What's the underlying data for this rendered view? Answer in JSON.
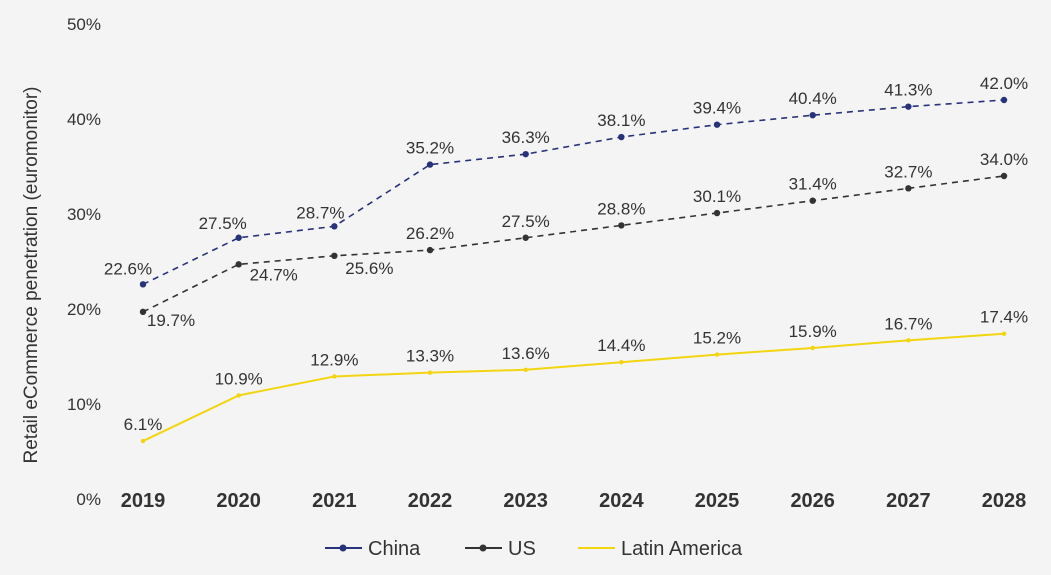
{
  "chart_data": {
    "type": "line",
    "title": "",
    "xlabel": "",
    "ylabel": "Retail eCommerce penetration (euromonitor)",
    "x": [
      "2019",
      "2020",
      "2021",
      "2022",
      "2023",
      "2024",
      "2025",
      "2026",
      "2027",
      "2028"
    ],
    "y_ticks": [
      "0%",
      "10%",
      "20%",
      "30%",
      "40%",
      "50%"
    ],
    "ylim": [
      0,
      50
    ],
    "grid": false,
    "legend_position": "bottom",
    "series": [
      {
        "name": "China",
        "color": "#27327a",
        "style": "dashed",
        "markers": true,
        "values": [
          22.6,
          27.5,
          28.7,
          35.2,
          36.3,
          38.1,
          39.4,
          40.4,
          41.3,
          42.0
        ],
        "labels": [
          "22.6%",
          "27.5%",
          "28.7%",
          "35.2%",
          "36.3%",
          "38.1%",
          "39.4%",
          "40.4%",
          "41.3%",
          "42.0%"
        ]
      },
      {
        "name": "US",
        "color": "#333333",
        "style": "dashed",
        "markers": true,
        "values": [
          19.7,
          24.7,
          25.6,
          26.2,
          27.5,
          28.8,
          30.1,
          31.4,
          32.7,
          34.0
        ],
        "labels": [
          "19.7%",
          "24.7%",
          "25.6%",
          "26.2%",
          "27.5%",
          "28.8%",
          "30.1%",
          "31.4%",
          "32.7%",
          "34.0%"
        ]
      },
      {
        "name": "Latin America",
        "color": "#f2d50f",
        "style": "solid",
        "markers": false,
        "values": [
          6.1,
          10.9,
          12.9,
          13.3,
          13.6,
          14.4,
          15.2,
          15.9,
          16.7,
          17.4
        ],
        "labels": [
          "6.1%",
          "10.9%",
          "12.9%",
          "13.3%",
          "13.6%",
          "14.4%",
          "15.2%",
          "15.9%",
          "16.7%",
          "17.4%"
        ]
      }
    ]
  }
}
